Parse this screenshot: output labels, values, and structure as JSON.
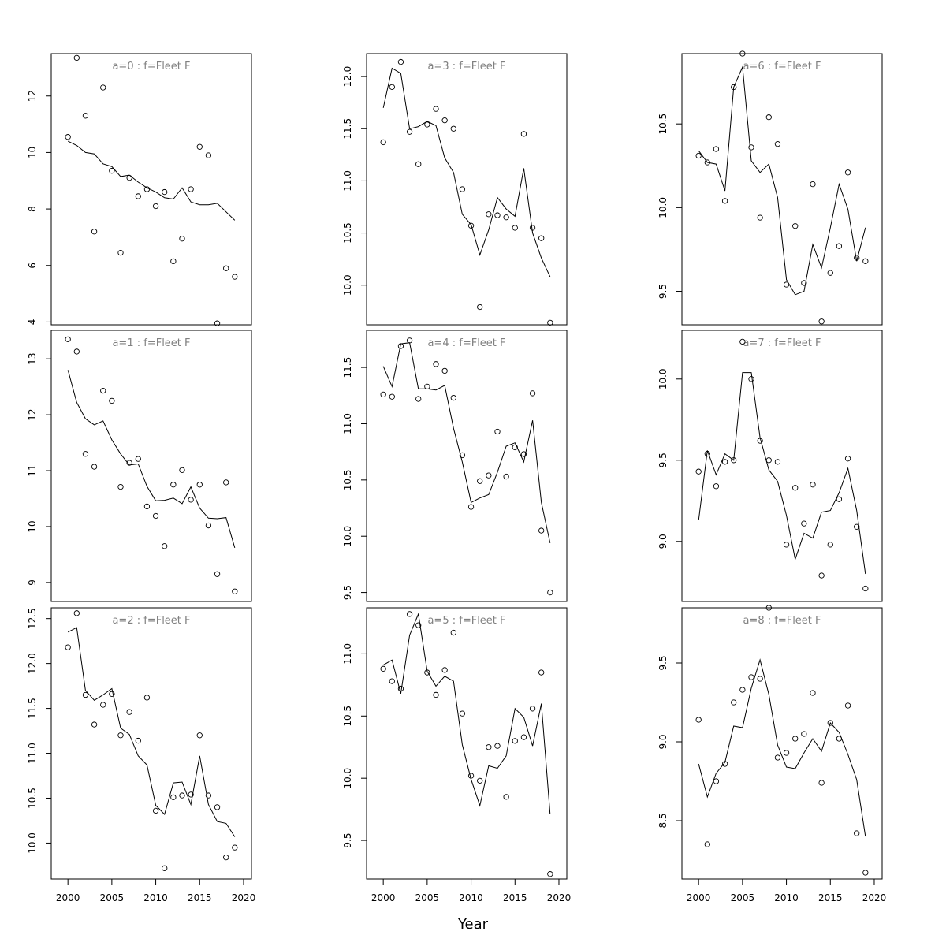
{
  "figure": {
    "xlabel": "Year",
    "colors": {
      "line": "#000000",
      "points": "#000000",
      "title": "#808080",
      "frame": "#000000"
    }
  },
  "chart_data": [
    {
      "type": "line",
      "title": "a=0 : f=Fleet F",
      "x": [
        2000,
        2001,
        2002,
        2003,
        2004,
        2005,
        2006,
        2007,
        2008,
        2009,
        2010,
        2011,
        2012,
        2013,
        2014,
        2015,
        2016,
        2017,
        2018,
        2019
      ],
      "xlim": [
        1998.1,
        2020.9
      ],
      "ylim": [
        3.9,
        13.5
      ],
      "xticks": [
        2000,
        2005,
        2010,
        2015,
        2020
      ],
      "yticks": [
        4,
        6,
        8,
        10,
        12
      ],
      "ytick_labels": [
        "4",
        "6",
        "8",
        "10",
        "12"
      ],
      "show_xaxis": false,
      "series": [
        {
          "kind": "line",
          "values": [
            10.4,
            10.25,
            10.0,
            9.95,
            9.6,
            9.5,
            9.15,
            9.2,
            8.95,
            8.75,
            8.6,
            8.4,
            8.35,
            8.75,
            8.25,
            8.15,
            8.15,
            8.2,
            7.9,
            7.6
          ]
        },
        {
          "kind": "points",
          "values": [
            10.55,
            13.35,
            11.3,
            7.2,
            12.3,
            9.35,
            6.45,
            9.1,
            8.45,
            8.7,
            8.1,
            8.6,
            6.15,
            6.95,
            8.7,
            10.2,
            9.9,
            3.95,
            5.9,
            5.6
          ]
        }
      ]
    },
    {
      "type": "line",
      "title": "a=3 : f=Fleet F",
      "x": [
        2000,
        2001,
        2002,
        2003,
        2004,
        2005,
        2006,
        2007,
        2008,
        2009,
        2010,
        2011,
        2012,
        2013,
        2014,
        2015,
        2016,
        2017,
        2018,
        2019
      ],
      "xlim": [
        1998.1,
        2020.9
      ],
      "ylim": [
        9.62,
        12.22
      ],
      "xticks": [
        2000,
        2005,
        2010,
        2015,
        2020
      ],
      "yticks": [
        10.0,
        10.5,
        11.0,
        11.5,
        12.0
      ],
      "ytick_labels": [
        "10.0",
        "10.5",
        "11.0",
        "11.5",
        "12.0"
      ],
      "show_xaxis": false,
      "series": [
        {
          "kind": "line",
          "values": [
            11.7,
            12.08,
            12.03,
            11.5,
            11.52,
            11.57,
            11.53,
            11.22,
            11.08,
            10.68,
            10.58,
            10.29,
            10.53,
            10.84,
            10.73,
            10.66,
            11.12,
            10.5,
            10.26,
            10.08
          ]
        },
        {
          "kind": "points",
          "values": [
            11.37,
            11.9,
            12.14,
            11.47,
            11.16,
            11.54,
            11.69,
            11.58,
            11.5,
            10.92,
            10.57,
            9.79,
            10.68,
            10.67,
            10.65,
            10.55,
            11.45,
            10.55,
            10.45,
            9.64
          ]
        }
      ]
    },
    {
      "type": "line",
      "title": "a=6 : f=Fleet F",
      "x": [
        2000,
        2001,
        2002,
        2003,
        2004,
        2005,
        2006,
        2007,
        2008,
        2009,
        2010,
        2011,
        2012,
        2013,
        2014,
        2015,
        2016,
        2017,
        2018,
        2019
      ],
      "xlim": [
        1998.1,
        2020.9
      ],
      "ylim": [
        9.3,
        10.92
      ],
      "xticks": [
        2000,
        2005,
        2010,
        2015,
        2020
      ],
      "yticks": [
        9.5,
        10.0,
        10.5
      ],
      "ytick_labels": [
        "9.5",
        "10.0",
        "10.5"
      ],
      "show_xaxis": false,
      "series": [
        {
          "kind": "line",
          "values": [
            10.34,
            10.27,
            10.26,
            10.1,
            10.72,
            10.84,
            10.28,
            10.21,
            10.26,
            10.06,
            9.57,
            9.48,
            9.5,
            9.78,
            9.64,
            9.88,
            10.14,
            9.99,
            9.68,
            9.88
          ]
        },
        {
          "kind": "points",
          "values": [
            10.31,
            10.27,
            10.35,
            10.04,
            10.72,
            10.92,
            10.36,
            9.94,
            10.54,
            10.38,
            9.54,
            9.89,
            9.55,
            10.14,
            9.32,
            9.61,
            9.77,
            10.21,
            9.7,
            9.68
          ]
        }
      ]
    },
    {
      "type": "line",
      "title": "a=1 : f=Fleet F",
      "x": [
        2000,
        2001,
        2002,
        2003,
        2004,
        2005,
        2006,
        2007,
        2008,
        2009,
        2010,
        2011,
        2012,
        2013,
        2014,
        2015,
        2016,
        2017,
        2018,
        2019
      ],
      "xlim": [
        1998.1,
        2020.9
      ],
      "ylim": [
        8.66,
        13.51
      ],
      "xticks": [
        2000,
        2005,
        2010,
        2015,
        2020
      ],
      "yticks": [
        9,
        10,
        11,
        12,
        13
      ],
      "ytick_labels": [
        "9",
        "10",
        "11",
        "12",
        "13"
      ],
      "show_xaxis": false,
      "series": [
        {
          "kind": "line",
          "values": [
            12.8,
            12.22,
            11.93,
            11.82,
            11.89,
            11.55,
            11.3,
            11.1,
            11.12,
            10.72,
            10.46,
            10.47,
            10.51,
            10.41,
            10.71,
            10.33,
            10.15,
            10.14,
            10.16,
            9.62
          ]
        },
        {
          "kind": "points",
          "values": [
            13.35,
            13.13,
            11.3,
            11.07,
            12.43,
            12.25,
            10.71,
            11.14,
            11.21,
            10.36,
            10.19,
            9.65,
            10.75,
            11.01,
            10.48,
            10.75,
            10.02,
            9.15,
            10.79,
            8.84
          ]
        }
      ]
    },
    {
      "type": "line",
      "title": "a=4 : f=Fleet F",
      "x": [
        2000,
        2001,
        2002,
        2003,
        2004,
        2005,
        2006,
        2007,
        2008,
        2009,
        2010,
        2011,
        2012,
        2013,
        2014,
        2015,
        2016,
        2017,
        2018,
        2019
      ],
      "xlim": [
        1998.1,
        2020.9
      ],
      "ylim": [
        9.42,
        11.83
      ],
      "xticks": [
        2000,
        2005,
        2010,
        2015,
        2020
      ],
      "yticks": [
        9.5,
        10.0,
        10.5,
        11.0,
        11.5
      ],
      "ytick_labels": [
        "9.5",
        "10.0",
        "10.5",
        "11.0",
        "11.5"
      ],
      "show_xaxis": false,
      "series": [
        {
          "kind": "line",
          "values": [
            11.51,
            11.33,
            11.71,
            11.72,
            11.31,
            11.31,
            11.3,
            11.34,
            10.96,
            10.66,
            10.3,
            10.34,
            10.37,
            10.57,
            10.8,
            10.83,
            10.66,
            11.03,
            10.3,
            9.94
          ]
        },
        {
          "kind": "points",
          "values": [
            11.26,
            11.24,
            11.69,
            11.74,
            11.22,
            11.33,
            11.53,
            11.47,
            11.23,
            10.72,
            10.26,
            10.49,
            10.54,
            10.93,
            10.53,
            10.79,
            10.73,
            11.27,
            10.05,
            9.5
          ]
        }
      ]
    },
    {
      "type": "line",
      "title": "a=7 : f=Fleet F",
      "x": [
        2000,
        2001,
        2002,
        2003,
        2004,
        2005,
        2006,
        2007,
        2008,
        2009,
        2010,
        2011,
        2012,
        2013,
        2014,
        2015,
        2016,
        2017,
        2018,
        2019
      ],
      "xlim": [
        1998.1,
        2020.9
      ],
      "ylim": [
        8.63,
        10.3
      ],
      "xticks": [
        2000,
        2005,
        2010,
        2015,
        2020
      ],
      "yticks": [
        9.0,
        9.5,
        10.0
      ],
      "ytick_labels": [
        "9.0",
        "9.5",
        "10.0"
      ],
      "show_xaxis": false,
      "series": [
        {
          "kind": "line",
          "values": [
            9.13,
            9.56,
            9.41,
            9.54,
            9.5,
            10.04,
            10.04,
            9.64,
            9.44,
            9.37,
            9.16,
            8.89,
            9.05,
            9.02,
            9.18,
            9.19,
            9.3,
            9.45,
            9.19,
            8.8
          ]
        },
        {
          "kind": "points",
          "values": [
            9.43,
            9.54,
            9.34,
            9.49,
            9.5,
            10.23,
            10.0,
            9.62,
            9.5,
            9.49,
            8.98,
            9.33,
            9.11,
            9.35,
            8.79,
            8.98,
            9.26,
            9.51,
            9.09,
            8.71
          ]
        }
      ]
    },
    {
      "type": "line",
      "title": "a=2 : f=Fleet F",
      "x": [
        2000,
        2001,
        2002,
        2003,
        2004,
        2005,
        2006,
        2007,
        2008,
        2009,
        2010,
        2011,
        2012,
        2013,
        2014,
        2015,
        2016,
        2017,
        2018,
        2019
      ],
      "xlim": [
        1998.1,
        2020.9
      ],
      "ylim": [
        9.6,
        12.62
      ],
      "xticks": [
        2000,
        2005,
        2010,
        2015,
        2020
      ],
      "yticks": [
        10.0,
        10.5,
        11.0,
        11.5,
        12.0,
        12.5
      ],
      "ytick_labels": [
        "10.0",
        "10.5",
        "11.0",
        "11.5",
        "12.0",
        "12.5"
      ],
      "show_xaxis": true,
      "series": [
        {
          "kind": "line",
          "values": [
            12.35,
            12.4,
            11.7,
            11.59,
            11.65,
            11.72,
            11.28,
            11.21,
            10.97,
            10.87,
            10.42,
            10.32,
            10.67,
            10.68,
            10.43,
            10.97,
            10.43,
            10.24,
            10.22,
            10.07
          ]
        },
        {
          "kind": "points",
          "values": [
            12.18,
            12.56,
            11.65,
            11.32,
            11.54,
            11.66,
            11.2,
            11.46,
            11.14,
            11.62,
            10.36,
            9.72,
            10.51,
            10.53,
            10.54,
            11.2,
            10.53,
            10.4,
            9.84,
            9.95
          ]
        }
      ]
    },
    {
      "type": "line",
      "title": "a=5 : f=Fleet F",
      "x": [
        2000,
        2001,
        2002,
        2003,
        2004,
        2005,
        2006,
        2007,
        2008,
        2009,
        2010,
        2011,
        2012,
        2013,
        2014,
        2015,
        2016,
        2017,
        2018,
        2019
      ],
      "xlim": [
        1998.1,
        2020.9
      ],
      "ylim": [
        9.19,
        11.37
      ],
      "xticks": [
        2000,
        2005,
        2010,
        2015,
        2020
      ],
      "yticks": [
        9.5,
        10.0,
        10.5,
        11.0
      ],
      "ytick_labels": [
        "9.5",
        "10.0",
        "10.5",
        "11.0"
      ],
      "show_xaxis": true,
      "series": [
        {
          "kind": "line",
          "values": [
            10.91,
            10.95,
            10.68,
            11.15,
            11.32,
            10.86,
            10.74,
            10.82,
            10.78,
            10.27,
            9.99,
            9.78,
            10.1,
            10.08,
            10.18,
            10.56,
            10.49,
            10.26,
            10.6,
            9.71
          ]
        },
        {
          "kind": "points",
          "values": [
            10.88,
            10.78,
            10.72,
            11.32,
            11.23,
            10.85,
            10.67,
            10.87,
            11.17,
            10.52,
            10.02,
            9.98,
            10.25,
            10.26,
            9.85,
            10.3,
            10.33,
            10.56,
            10.85,
            9.23
          ]
        }
      ]
    },
    {
      "type": "line",
      "title": "a=8 : f=Fleet F",
      "x": [
        2000,
        2001,
        2002,
        2003,
        2004,
        2005,
        2006,
        2007,
        2008,
        2009,
        2010,
        2011,
        2012,
        2013,
        2014,
        2015,
        2016,
        2017,
        2018,
        2019
      ],
      "xlim": [
        1998.1,
        2020.9
      ],
      "ylim": [
        8.13,
        9.85
      ],
      "xticks": [
        2000,
        2005,
        2010,
        2015,
        2020
      ],
      "yticks": [
        8.5,
        9.0,
        9.5
      ],
      "ytick_labels": [
        "8.5",
        "9.0",
        "9.5"
      ],
      "show_xaxis": true,
      "series": [
        {
          "kind": "line",
          "values": [
            8.86,
            8.65,
            8.8,
            8.87,
            9.1,
            9.09,
            9.34,
            9.52,
            9.3,
            8.98,
            8.84,
            8.83,
            8.93,
            9.02,
            8.94,
            9.12,
            9.06,
            8.92,
            8.76,
            8.4
          ]
        },
        {
          "kind": "points",
          "values": [
            9.14,
            8.35,
            8.75,
            8.86,
            9.25,
            9.33,
            9.41,
            9.4,
            9.85,
            8.9,
            8.93,
            9.02,
            9.05,
            9.31,
            8.74,
            9.12,
            9.02,
            9.23,
            8.42,
            8.17
          ]
        }
      ]
    }
  ]
}
